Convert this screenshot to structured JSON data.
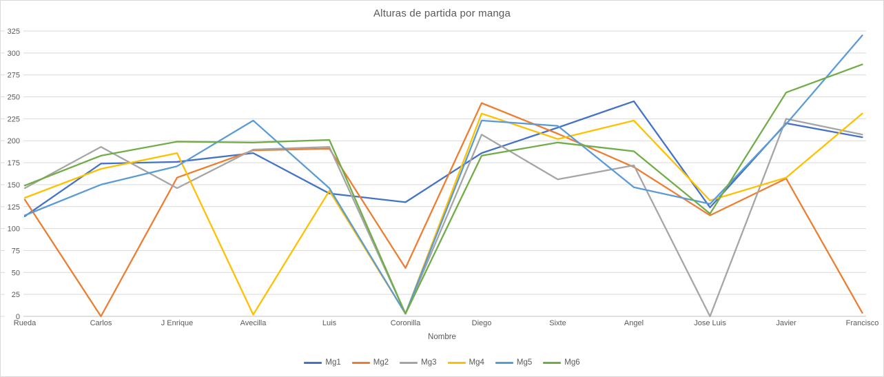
{
  "chart_data": {
    "type": "line",
    "title": "Alturas de partida por manga",
    "xlabel": "Nombre",
    "ylabel": "",
    "ylim": [
      0,
      325
    ],
    "ytick_step": 25,
    "grid": true,
    "legend_position": "bottom",
    "categories": [
      "Rueda",
      "Carlos",
      "J Enrique",
      "Avecilla",
      "Luis",
      "Coronilla",
      "Diego",
      "Sixte",
      "Angel",
      "Jose Luis",
      "Javier",
      "Francisco"
    ],
    "series": [
      {
        "name": "Mg1",
        "color": "#4472C4",
        "values": [
          114,
          174,
          176,
          186,
          140,
          130,
          186,
          215,
          245,
          124,
          220,
          204
        ]
      },
      {
        "name": "Mg2",
        "color": "#ED7D31",
        "values": [
          133,
          0,
          158,
          189,
          191,
          55,
          243,
          208,
          170,
          115,
          157,
          4
        ]
      },
      {
        "name": "Mg3",
        "color": "#A5A5A5",
        "values": [
          146,
          193,
          146,
          190,
          193,
          3,
          207,
          156,
          172,
          0,
          225,
          207
        ]
      },
      {
        "name": "Mg4",
        "color": "#FFC000",
        "values": [
          135,
          168,
          186,
          2,
          143,
          3,
          231,
          202,
          223,
          132,
          158,
          231
        ]
      },
      {
        "name": "Mg5",
        "color": "#5B9BD5",
        "values": [
          115,
          150,
          171,
          223,
          146,
          3,
          223,
          217,
          147,
          128,
          219,
          320
        ]
      },
      {
        "name": "Mg6",
        "color": "#70AD47",
        "values": [
          149,
          183,
          199,
          198,
          201,
          3,
          183,
          198,
          188,
          117,
          255,
          287
        ]
      }
    ],
    "style": {
      "grid_color": "#D9D9D9",
      "axis_line_color": "#BFBFBF",
      "text_color": "#595959",
      "background": "#FFFFFF"
    }
  }
}
